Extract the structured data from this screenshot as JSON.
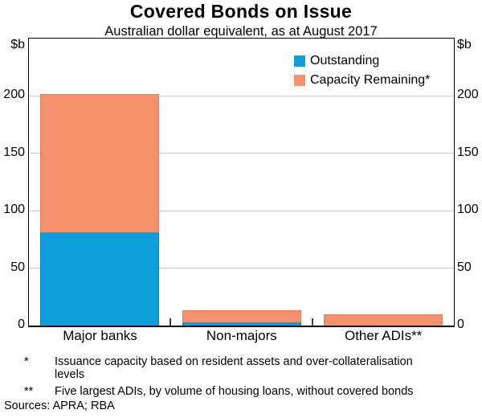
{
  "title": "Covered Bonds on Issue",
  "subtitle": "Australian dollar equivalent, as at August 2017",
  "axis": {
    "unit_left": "$b",
    "unit_right": "$b",
    "yticks": [
      0,
      50,
      100,
      150,
      200
    ],
    "ylim": [
      0,
      250
    ]
  },
  "legend": {
    "position": "top-right",
    "items": [
      {
        "label": "Outstanding",
        "color": "#0f9ed9"
      },
      {
        "label": "Capacity Remaining*",
        "color": "#f5916c"
      }
    ]
  },
  "chart_data": {
    "type": "bar",
    "stacked": true,
    "title": "Covered Bonds on Issue",
    "subtitle": "Australian dollar equivalent, as at August 2017",
    "ylabel": "$b",
    "ylim": [
      0,
      250
    ],
    "yticks": [
      0,
      50,
      100,
      150,
      200
    ],
    "grid": true,
    "legend_position": "top-right",
    "categories": [
      "Major banks",
      "Non-majors",
      "Other ADIs**"
    ],
    "series": [
      {
        "name": "Outstanding",
        "color": "#0f9ed9",
        "edge_color": "#0d86bd",
        "values": [
          81,
          3,
          0
        ]
      },
      {
        "name": "Capacity Remaining*",
        "color": "#f5916c",
        "edge_color": "#e57f58",
        "values": [
          121,
          10,
          10
        ]
      }
    ],
    "totals": [
      202,
      13,
      10
    ]
  },
  "footnotes": [
    {
      "marker": "*",
      "text": "Issuance capacity based on resident assets and over-collateralisation levels"
    },
    {
      "marker": "**",
      "text": "Five largest ADIs, by volume of housing loans, without covered bonds"
    }
  ],
  "sources": "Sources: APRA; RBA",
  "colors": {
    "gridline": "#c9c9c9",
    "axis": "#000000",
    "background": "#ffffff"
  }
}
